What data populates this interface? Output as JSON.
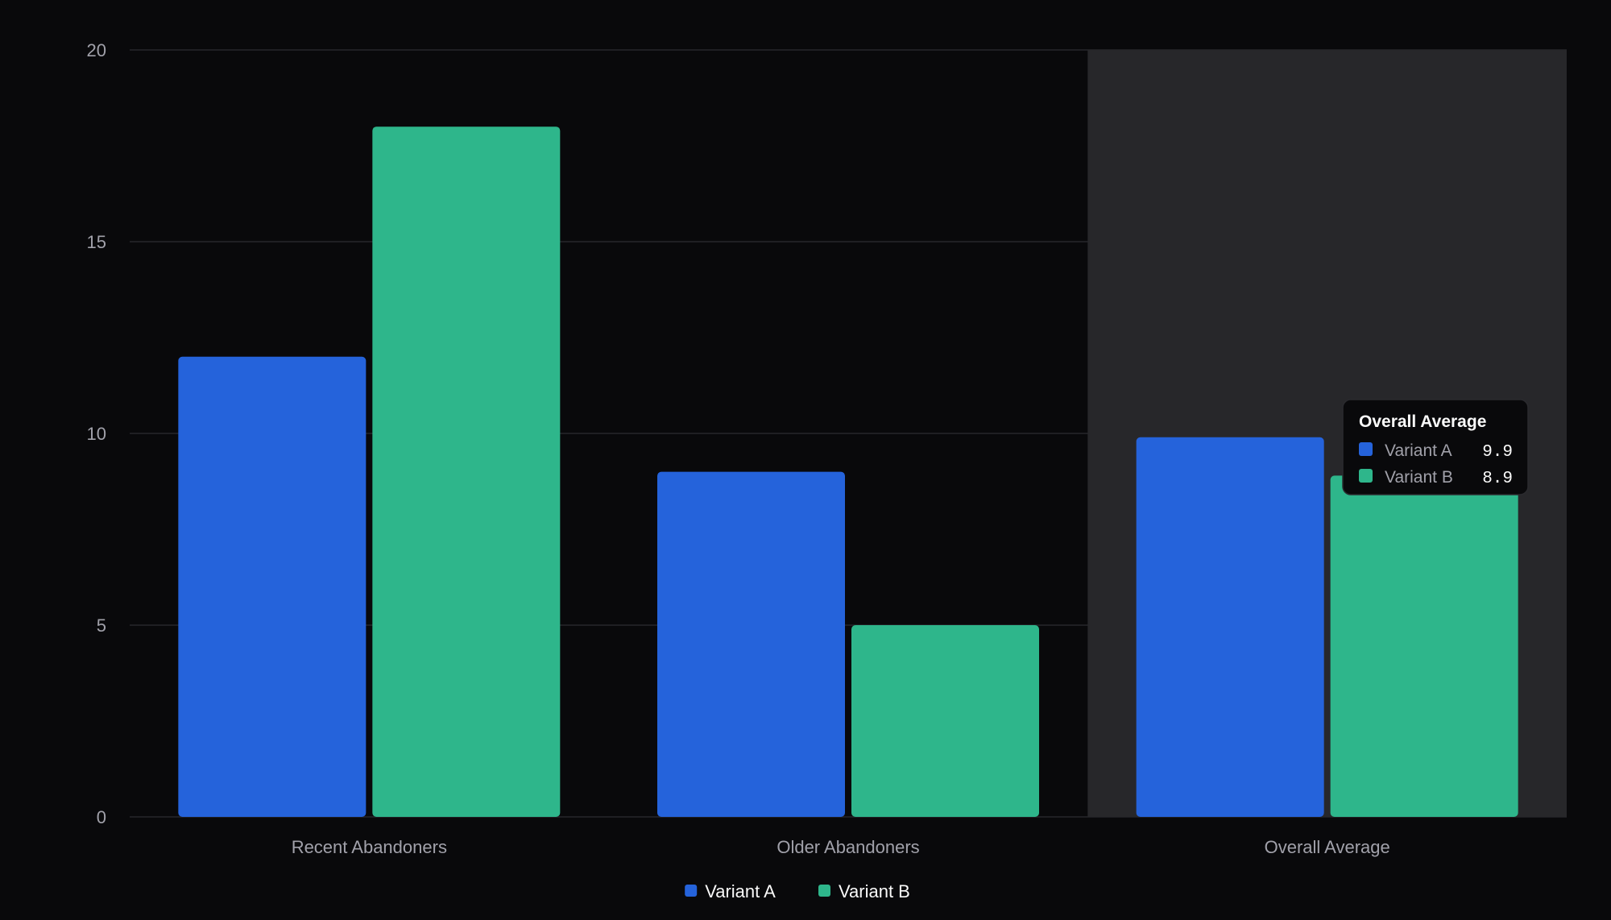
{
  "chart_data": {
    "type": "bar",
    "title": "",
    "xlabel": "",
    "ylabel": "",
    "categories": [
      "Recent Abandoners",
      "Older Abandoners",
      "Overall Average"
    ],
    "series": [
      {
        "name": "Variant A",
        "color": "#2563db",
        "values": [
          12,
          9,
          9.9
        ]
      },
      {
        "name": "Variant B",
        "color": "#2eb68b",
        "values": [
          18,
          5,
          8.9
        ]
      }
    ],
    "ylim": [
      0,
      20
    ],
    "yticks": [
      0,
      5,
      10,
      15,
      20
    ],
    "grid": true,
    "legend": "bottom-center",
    "highlighted_category": "Overall Average",
    "tooltip": {
      "title": "Overall Average",
      "rows": [
        {
          "name": "Variant A",
          "value": "9.9",
          "color": "#2563db"
        },
        {
          "name": "Variant B",
          "value": "8.9",
          "color": "#2eb68b"
        }
      ]
    }
  }
}
